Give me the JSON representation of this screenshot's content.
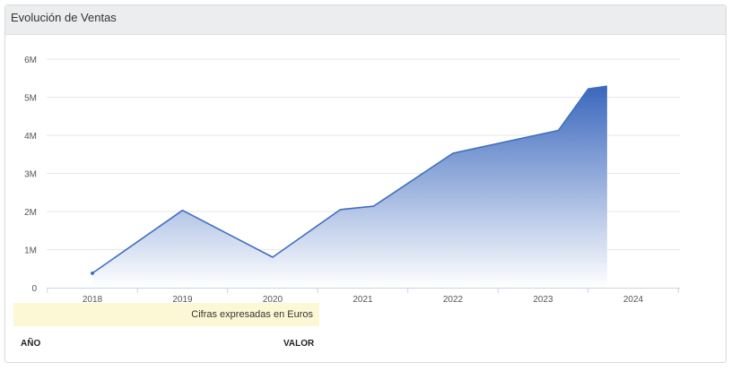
{
  "panel": {
    "title": "Evolución de Ventas",
    "note": "Cifras expresadas en Euros",
    "columns": {
      "year": "AÑO",
      "value": "VALOR"
    }
  },
  "colors": {
    "line": "#3f6fbf",
    "fill_top": "#3a67bd",
    "fill_bottom": "#ffffff",
    "grid": "#e6e6e6"
  },
  "chart_data": {
    "type": "area",
    "title": "Evolución de Ventas",
    "xlabel": "",
    "ylabel": "",
    "categories": [
      "2018",
      "2019",
      "2020",
      "2021",
      "2022",
      "2023",
      "2024"
    ],
    "y_tick_labels": [
      "0",
      "1M",
      "2M",
      "3M",
      "4M",
      "5M",
      "6M"
    ],
    "ylim": [
      0,
      6000000
    ],
    "grid": true,
    "series": [
      {
        "x": [
          2018.0,
          2019.0,
          2020.0,
          2020.75,
          2021.12,
          2022.0,
          2023.17,
          2023.5,
          2023.71
        ],
        "values": [
          380000,
          2030000,
          800000,
          2050000,
          2140000,
          3530000,
          4130000,
          5220000,
          5290000
        ]
      }
    ]
  }
}
